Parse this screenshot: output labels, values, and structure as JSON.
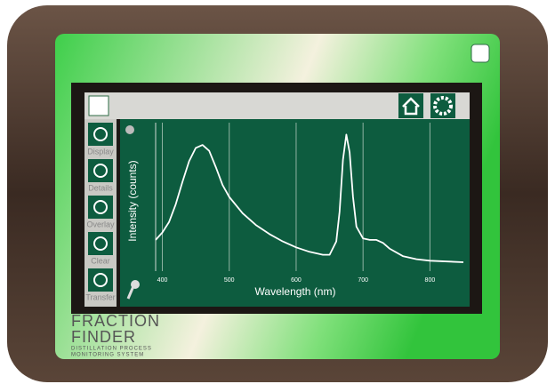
{
  "sidebar": {
    "buttons": [
      "Display",
      "Details",
      "Overlay",
      "Clear",
      "Transfer"
    ]
  },
  "brand": {
    "name_top": "FRACTION",
    "name_bottom": "FINDER",
    "tagline_1": "DISTILLATION PROCESS",
    "tagline_2": "MONITORING SYSTEM"
  },
  "chart_data": {
    "type": "line",
    "x_label": "Wavelength (nm)",
    "y_label": "Intensity (counts)",
    "color": "#ffffff",
    "grid": true,
    "x": [
      390,
      400,
      410,
      420,
      430,
      440,
      450,
      460,
      470,
      480,
      490,
      500,
      520,
      540,
      560,
      580,
      600,
      620,
      640,
      650,
      660,
      665,
      670,
      675,
      680,
      685,
      690,
      700,
      710,
      720,
      730,
      740,
      760,
      780,
      800,
      850
    ],
    "values": [
      21,
      26,
      33,
      45,
      60,
      74,
      83,
      85,
      81,
      70,
      58,
      50,
      39,
      31,
      25,
      20,
      16,
      13,
      11,
      11,
      20,
      40,
      75,
      92,
      80,
      50,
      30,
      22,
      21,
      21,
      19,
      15,
      10,
      8,
      7,
      6
    ],
    "xlim": [
      390,
      850
    ],
    "xticks": [
      400,
      500,
      600,
      700,
      800
    ],
    "ylim": [
      0,
      100
    ]
  }
}
